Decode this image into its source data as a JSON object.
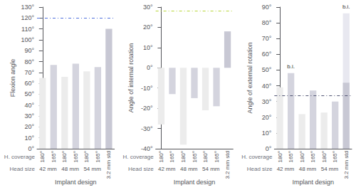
{
  "chart_data": [
    {
      "type": "bar",
      "ylabel": "Flexion angle",
      "xlabel": "Implant design",
      "categories": [
        "180°",
        "165°",
        "180°",
        "165°",
        "180°",
        "165°",
        "3.2 mm std"
      ],
      "groups": [
        "42 mm",
        "48 mm",
        "54 mm"
      ],
      "row_labels": [
        "H. coverage",
        "Head size"
      ],
      "values": [
        65,
        77,
        66,
        78,
        71,
        75,
        110
      ],
      "colors": [
        "#ececec",
        "#d4d4de",
        "#ececec",
        "#d4d4de",
        "#ececec",
        "#d4d4de",
        "#c8c8d4"
      ],
      "ylim": [
        0,
        130
      ],
      "yticks": [
        {
          "value": 0,
          "label": "0°"
        },
        {
          "value": 10,
          "label": "10°"
        },
        {
          "value": 20,
          "label": "20°"
        },
        {
          "value": 30,
          "label": "30°"
        },
        {
          "value": 40,
          "label": "40°"
        },
        {
          "value": 50,
          "label": "50°"
        },
        {
          "value": 60,
          "label": "60°"
        },
        {
          "value": 70,
          "label": "70°"
        },
        {
          "value": 80,
          "label": "80°"
        },
        {
          "value": 90,
          "label": "90°"
        },
        {
          "value": 100,
          "label": "100°"
        },
        {
          "value": 110,
          "label": "110°"
        },
        {
          "value": 120,
          "label": "120°"
        },
        {
          "value": 130,
          "label": "130°"
        }
      ],
      "reference_line": {
        "value": 120,
        "line_style": "dashdot"
      },
      "grid": false
    },
    {
      "type": "bar",
      "ylabel": "Angle of internal rotation",
      "xlabel": "Implant design",
      "categories": [
        "180°",
        "165°",
        "180°",
        "165°",
        "180°",
        "165°",
        "3.2 mm std"
      ],
      "groups": [
        "42 mm",
        "48 mm",
        "54 mm"
      ],
      "row_labels": [
        "H. coverage",
        "Head size"
      ],
      "values": [
        -28,
        -13,
        -38,
        -15,
        -21,
        -19,
        18
      ],
      "colors": [
        "#ececec",
        "#d4d4de",
        "#ececec",
        "#d4d4de",
        "#ececec",
        "#d4d4de",
        "#c8c8d4"
      ],
      "ylim": [
        -40,
        30
      ],
      "yticks": [
        {
          "value": -40,
          "label": "-40°"
        },
        {
          "value": -30,
          "label": "-30°"
        },
        {
          "value": -20,
          "label": "-20°"
        },
        {
          "value": -10,
          "label": "-10°"
        },
        {
          "value": 0,
          "label": "0°"
        },
        {
          "value": 10,
          "label": "10°"
        },
        {
          "value": 20,
          "label": "20°"
        },
        {
          "value": 30,
          "label": "30°"
        }
      ],
      "reference_line": {
        "value": 28,
        "line_style": "dashdot"
      },
      "grid": false
    },
    {
      "type": "bar",
      "ylabel": "Angle of external rotation",
      "xlabel": "Implant design",
      "categories": [
        "180°",
        "165°",
        "180°",
        "165°",
        "180°",
        "165°",
        "3.2 mm std"
      ],
      "groups": [
        "42 mm",
        "48 mm",
        "54 mm"
      ],
      "row_labels": [
        "H. coverage",
        "Head size"
      ],
      "values": [
        39,
        48,
        22,
        37,
        23,
        30,
        86
      ],
      "colors": [
        "#ececec",
        "#d4d4de",
        "#ececec",
        "#d4d4de",
        "#ececec",
        "#d4d4de",
        "#c8c8d4"
      ],
      "last_bar_split": 42,
      "last_bar_top_color": "#e8e8f0",
      "annotations": [
        {
          "index": 1,
          "text": "b.i."
        },
        {
          "index": 6,
          "text": "b.i."
        }
      ],
      "ylim": [
        0,
        90
      ],
      "yticks": [
        {
          "value": 0,
          "label": "0°"
        },
        {
          "value": 10,
          "label": "10°"
        },
        {
          "value": 20,
          "label": "20°"
        },
        {
          "value": 30,
          "label": "30°"
        },
        {
          "value": 40,
          "label": "40°"
        },
        {
          "value": 50,
          "label": "50°"
        },
        {
          "value": 60,
          "label": "60°"
        },
        {
          "value": 70,
          "label": "70°"
        },
        {
          "value": 80,
          "label": "80°"
        },
        {
          "value": 90,
          "label": "90°"
        }
      ],
      "reference_line": {
        "value": 34,
        "line_style": "dashdot"
      },
      "grid": false
    }
  ]
}
